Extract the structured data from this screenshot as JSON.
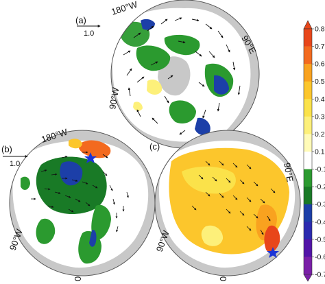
{
  "figure": {
    "panels": [
      {
        "id": "a",
        "label": "(a)",
        "ref_vector_label": "1.0",
        "lon_labels": {
          "top": "180°W",
          "right": "90°E",
          "left": "90°W"
        }
      },
      {
        "id": "b",
        "label": "(b)",
        "ref_vector_label": "1.0",
        "lon_labels": {
          "top": "180°W",
          "left": "90°W",
          "bottom": "0"
        }
      },
      {
        "id": "c",
        "label": "(c)",
        "lon_labels": {
          "right": "90°E",
          "left": "90°W",
          "bottom": "0"
        }
      }
    ],
    "colorbar": {
      "ticks": [
        "0.8",
        "0.7",
        "0.6",
        "0.5",
        "0.4",
        "0.3",
        "0.2",
        "0.1",
        "-0.1",
        "-0.2",
        "-0.3",
        "-0.4",
        "-0.5",
        "-0.6",
        "-0.7"
      ],
      "colors": [
        "#e8461a",
        "#f36a1f",
        "#f9a21f",
        "#fcc62c",
        "#fbe24a",
        "#fdf07a",
        "#fffbb8",
        "#ffffff",
        "#2b9a2f",
        "#197a26",
        "#1c3fa8",
        "#2b2ab0",
        "#5214a8",
        "#7a1fa8"
      ],
      "extend_top_color": "#e8461a",
      "extend_bottom_color": "#7a1fa8"
    },
    "colors": {
      "land": "#c8c8c8",
      "ocean_bg": "#ffffff",
      "circle_outline": "#555555",
      "arrow": "#111111",
      "star": "#1b35d6"
    }
  }
}
